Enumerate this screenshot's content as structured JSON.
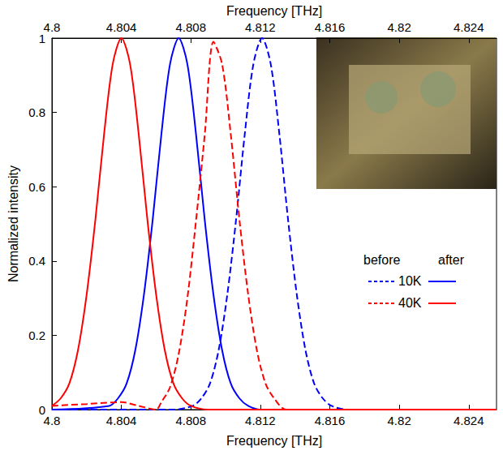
{
  "chart_data": {
    "type": "line",
    "x_label": "Frequency [THz]",
    "x2_label": "Frequency [THz]",
    "y_label": "Normalized intensity",
    "xlim": [
      4.8,
      4.8256
    ],
    "xticks": [
      4.8,
      4.804,
      4.808,
      4.812,
      4.816,
      4.82,
      4.824
    ],
    "ylim": [
      0,
      1
    ],
    "yticks": [
      0,
      0.2,
      0.4,
      0.6,
      0.8,
      1
    ],
    "grid": false,
    "legend": "right",
    "legend_columns": [
      "before",
      "after"
    ],
    "series": [
      {
        "temperature": "10K",
        "condition": "before",
        "color": "#0000ff",
        "line_style": "dashed",
        "x": [
          4.8,
          4.807,
          4.8081,
          4.8086,
          4.8091,
          4.8096,
          4.8101,
          4.8106,
          4.8111,
          4.8116,
          4.8121,
          4.8126,
          4.8131,
          4.8136,
          4.8141,
          4.8146,
          4.8151,
          4.8156,
          4.8161,
          4.817,
          4.8256
        ],
        "values": [
          0,
          0,
          0.01,
          0.03,
          0.07,
          0.16,
          0.31,
          0.51,
          0.74,
          0.93,
          1,
          0.93,
          0.74,
          0.51,
          0.31,
          0.16,
          0.07,
          0.03,
          0.01,
          0,
          0
        ]
      },
      {
        "temperature": "10K",
        "condition": "after",
        "color": "#0000ff",
        "line_style": "solid",
        "x": [
          4.8,
          4.8033,
          4.8038,
          4.8043,
          4.8048,
          4.8053,
          4.8058,
          4.8063,
          4.8068,
          4.8073,
          4.8078,
          4.8083,
          4.8088,
          4.8093,
          4.8098,
          4.8103,
          4.8108,
          4.8113,
          4.812,
          4.8256
        ],
        "values": [
          0,
          0.01,
          0.03,
          0.07,
          0.16,
          0.31,
          0.51,
          0.74,
          0.93,
          1,
          0.93,
          0.74,
          0.51,
          0.31,
          0.16,
          0.07,
          0.03,
          0.01,
          0,
          0
        ]
      },
      {
        "temperature": "40K",
        "condition": "before",
        "color": "#ff0000",
        "line_style": "dashed",
        "x": [
          4.8,
          4.802,
          4.804,
          4.805,
          4.806,
          4.8063,
          4.8068,
          4.8073,
          4.8078,
          4.8083,
          4.8088,
          4.8093,
          4.8098,
          4.8103,
          4.8108,
          4.8113,
          4.8118,
          4.8123,
          4.8128,
          4.8135,
          4.8256
        ],
        "values": [
          0.01,
          0.015,
          0.02,
          0.01,
          0,
          0.02,
          0.06,
          0.15,
          0.3,
          0.51,
          0.74,
          0.99,
          0.93,
          0.74,
          0.51,
          0.31,
          0.16,
          0.07,
          0.03,
          0,
          0
        ]
      },
      {
        "temperature": "40K",
        "condition": "after",
        "color": "#ff0000",
        "line_style": "solid",
        "x": [
          4.8,
          4.8005,
          4.801,
          4.8015,
          4.802,
          4.8025,
          4.803,
          4.8035,
          4.804,
          4.8045,
          4.805,
          4.8055,
          4.806,
          4.8065,
          4.807,
          4.8075,
          4.808,
          4.809,
          4.8256
        ],
        "values": [
          0.01,
          0.03,
          0.07,
          0.16,
          0.31,
          0.51,
          0.74,
          0.93,
          1,
          0.93,
          0.74,
          0.51,
          0.31,
          0.16,
          0.07,
          0.03,
          0.01,
          0,
          0
        ]
      }
    ]
  }
}
